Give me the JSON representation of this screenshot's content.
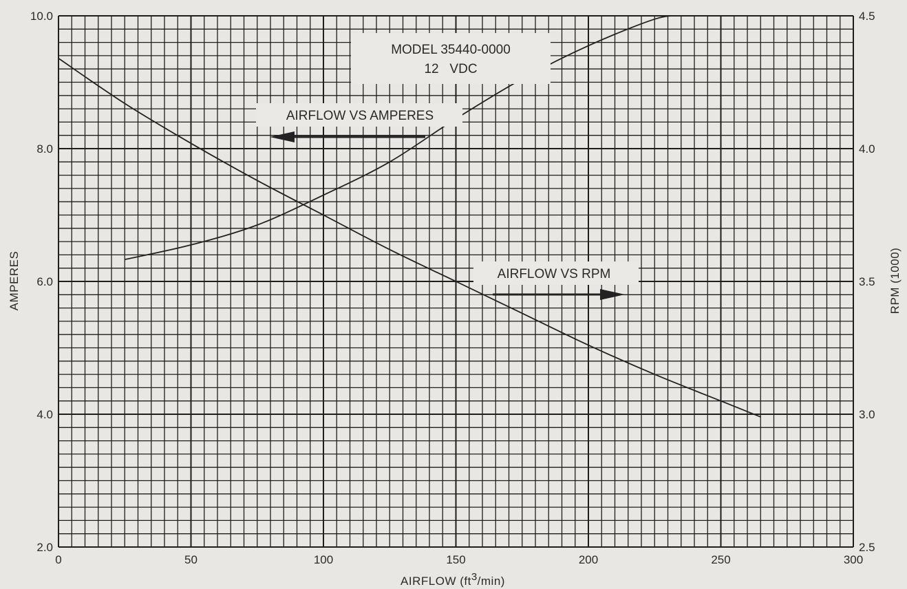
{
  "chart_data": {
    "type": "line",
    "title": "MODEL 35440-0000",
    "subtitle": "12   VDC",
    "xlabel": "AIRFLOW (ft",
    "xlabel_sup": "3",
    "xlabel_tail": "/min)",
    "ylabel": "AMPERES",
    "y2label": "RPM (1000)",
    "xlim": [
      0,
      300
    ],
    "ylim": [
      2.0,
      10.0
    ],
    "y2lim": [
      2.5,
      4.5
    ],
    "x_ticks": [
      "0",
      "50",
      "100",
      "150",
      "200",
      "250",
      "300"
    ],
    "y_ticks": [
      "2.0",
      "4.0",
      "6.0",
      "8.0",
      "10.0"
    ],
    "y2_ticks": [
      "2.5",
      "3.0",
      "3.5",
      "4.0",
      "4.5"
    ],
    "grid": true,
    "annotations": [
      {
        "text": "AIRFLOW VS AMPERES",
        "arrow": "left"
      },
      {
        "text": "AIRFLOW VS RPM",
        "arrow": "right"
      }
    ],
    "series": [
      {
        "axis": "right",
        "x": [
          0,
          25,
          50,
          75,
          100,
          125,
          150,
          175,
          200,
          225,
          250,
          265
        ],
        "y": [
          4.34,
          4.17,
          4.02,
          3.88,
          3.75,
          3.62,
          3.5,
          3.38,
          3.26,
          3.15,
          3.05,
          2.99
        ]
      },
      {
        "axis": "left",
        "x": [
          25,
          50,
          75,
          100,
          125,
          150,
          175,
          200,
          225,
          235
        ],
        "y": [
          6.33,
          6.55,
          6.85,
          7.3,
          7.8,
          8.45,
          9.05,
          9.55,
          9.95,
          10.0
        ]
      }
    ]
  }
}
